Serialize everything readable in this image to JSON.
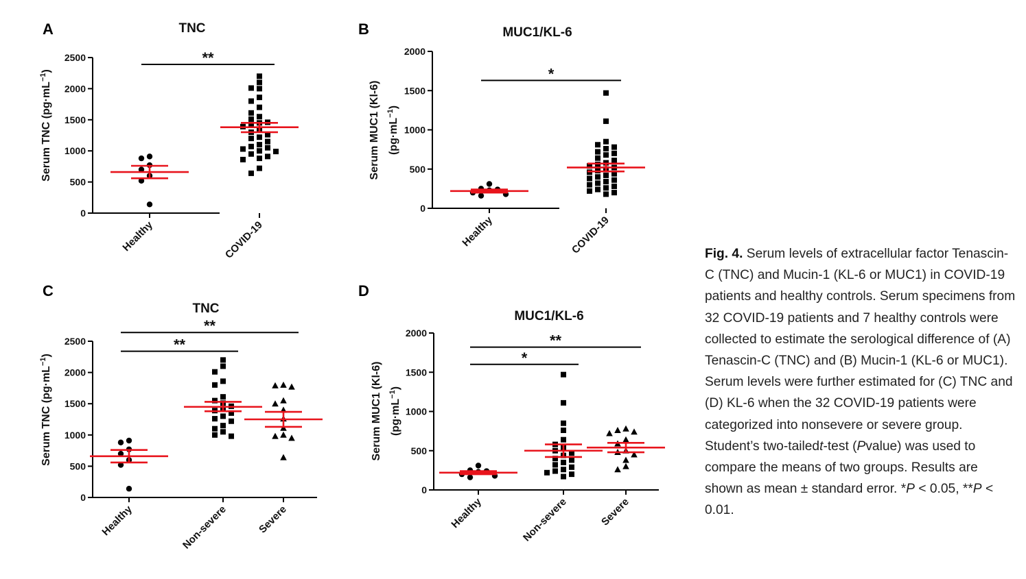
{
  "panel_labels": {
    "A": "A",
    "B": "B",
    "C": "C",
    "D": "D"
  },
  "chart_data": [
    {
      "panel": "A",
      "type": "scatter",
      "title": "TNC",
      "ylabel_main": "Serum TNC (pg·mL",
      "ylabel_sup": "−1",
      "ylabel_end": ")",
      "ylim": [
        0,
        2500
      ],
      "yticks": [
        0,
        500,
        1000,
        1500,
        2000,
        2500
      ],
      "categories": [
        "Healthy",
        "COVID-19"
      ],
      "series": [
        {
          "marker": "circle",
          "values": [
            910,
            880,
            770,
            700,
            600,
            520,
            140
          ],
          "mean": 660,
          "sem_low": 560,
          "sem_high": 760
        },
        {
          "marker": "square",
          "values": [
            2200,
            2100,
            2010,
            2000,
            1860,
            1800,
            1700,
            1610,
            1550,
            1510,
            1460,
            1450,
            1410,
            1390,
            1350,
            1300,
            1260,
            1220,
            1200,
            1150,
            1100,
            1070,
            1050,
            1030,
            1000,
            990,
            950,
            910,
            880,
            860,
            720,
            640
          ],
          "mean": 1380,
          "sem_low": 1300,
          "sem_high": 1450
        }
      ],
      "significance": [
        {
          "from": 0,
          "to": 1,
          "label": "**",
          "y": 2390
        }
      ]
    },
    {
      "panel": "B",
      "type": "scatter",
      "title": "MUC1/KL-6",
      "ylabel_main": "Serum MUC1 (Kl-6)",
      "ylabel2_main": "(pg·mL",
      "ylabel2_sup": "−1",
      "ylabel2_end": ")",
      "ylim": [
        0,
        2000
      ],
      "yticks": [
        0,
        500,
        1000,
        1500,
        2000
      ],
      "categories": [
        "Healthy",
        "COVID-19"
      ],
      "series": [
        {
          "marker": "circle",
          "values": [
            310,
            250,
            240,
            230,
            200,
            180,
            160
          ],
          "mean": 220,
          "sem_low": 200,
          "sem_high": 240
        },
        {
          "marker": "square",
          "values": [
            1470,
            1110,
            850,
            810,
            780,
            760,
            720,
            700,
            680,
            640,
            610,
            580,
            560,
            540,
            520,
            500,
            480,
            460,
            440,
            420,
            400,
            380,
            360,
            340,
            320,
            300,
            280,
            260,
            240,
            220,
            200,
            180
          ],
          "mean": 520,
          "sem_low": 470,
          "sem_high": 570
        }
      ],
      "significance": [
        {
          "from": 0,
          "to": 1,
          "label": "*",
          "y": 1630
        }
      ]
    },
    {
      "panel": "C",
      "type": "scatter",
      "title": "TNC",
      "ylabel_main": "Serum TNC (pg·mL",
      "ylabel_sup": "−1",
      "ylabel_end": ")",
      "ylim": [
        0,
        2500
      ],
      "yticks": [
        0,
        500,
        1000,
        1500,
        2000,
        2500
      ],
      "categories": [
        "Healthy",
        "Non-severe",
        "Severe"
      ],
      "series": [
        {
          "marker": "circle",
          "values": [
            910,
            880,
            770,
            700,
            600,
            520,
            140
          ],
          "mean": 660,
          "sem_low": 560,
          "sem_high": 760
        },
        {
          "marker": "square",
          "values": [
            2200,
            2100,
            2010,
            1860,
            1800,
            1610,
            1550,
            1510,
            1460,
            1410,
            1390,
            1350,
            1300,
            1260,
            1220,
            1150,
            1100,
            1050,
            1000,
            980
          ],
          "mean": 1450,
          "sem_low": 1380,
          "sem_high": 1530
        },
        {
          "marker": "triangle",
          "values": [
            1800,
            1790,
            1770,
            1550,
            1500,
            1400,
            1260,
            1110,
            1000,
            980,
            950,
            640
          ],
          "mean": 1250,
          "sem_low": 1130,
          "sem_high": 1370
        }
      ],
      "significance": [
        {
          "from": 0,
          "to": 1,
          "label": "**",
          "y": 2340
        },
        {
          "from": 0,
          "to": 2,
          "label": "**",
          "y": 2640
        }
      ]
    },
    {
      "panel": "D",
      "type": "scatter",
      "title": "MUC1/KL-6",
      "ylabel_main": "Serum MUC1 (Kl-6)",
      "ylabel2_main": "(pg·mL",
      "ylabel2_sup": "−1",
      "ylabel2_end": ")",
      "ylim": [
        0,
        2000
      ],
      "yticks": [
        0,
        500,
        1000,
        1500,
        2000
      ],
      "categories": [
        "Healthy",
        "Non-severe",
        "Severe"
      ],
      "series": [
        {
          "marker": "circle",
          "values": [
            310,
            250,
            240,
            230,
            200,
            180,
            160
          ],
          "mean": 220,
          "sem_low": 200,
          "sem_high": 240
        },
        {
          "marker": "square",
          "values": [
            1470,
            1110,
            850,
            760,
            640,
            580,
            540,
            500,
            470,
            440,
            400,
            380,
            350,
            320,
            290,
            260,
            240,
            220,
            200,
            170
          ],
          "mean": 500,
          "sem_low": 420,
          "sem_high": 580
        },
        {
          "marker": "triangle",
          "values": [
            780,
            760,
            740,
            720,
            640,
            590,
            500,
            480,
            450,
            380,
            300,
            260
          ],
          "mean": 540,
          "sem_low": 480,
          "sem_high": 600
        }
      ],
      "significance": [
        {
          "from": 0,
          "to": 1,
          "label": "*",
          "y": 1600
        },
        {
          "from": 0,
          "to": 2,
          "label": "**",
          "y": 1820
        }
      ]
    }
  ],
  "caption": {
    "label": "Fig. 4.",
    "text_1": " Serum levels of extracellular factor Tenascin-C (TNC) and Mucin-1 (KL-6 or MUC1) in COVID-19 patients and healthy controls. Serum specimens from 32 COVID-19 patients and 7 healthy controls were collected to estimate the serological difference of (A) Tenascin-C (TNC) and (B) Mucin-1 (KL-6 or MUC1). Serum levels were further estimated for (C) TNC and (D) KL-6 when the 32 COVID-19 patients were categorized into nonsevere or severe group. Student’s two-tailed",
    "t_italic": "t",
    "text_2": "-test (",
    "p_italic": "P",
    "text_3": "value) was used to compare the means of two groups. Results are shown as mean ± standard error. *",
    "p2_italic": "P",
    "text_4": " < 0.05, **",
    "p3_italic": "P",
    "text_5": " < 0.01."
  },
  "colors": {
    "mean_bar": "#e8141c",
    "points": "#000000",
    "axis": "#000000"
  }
}
